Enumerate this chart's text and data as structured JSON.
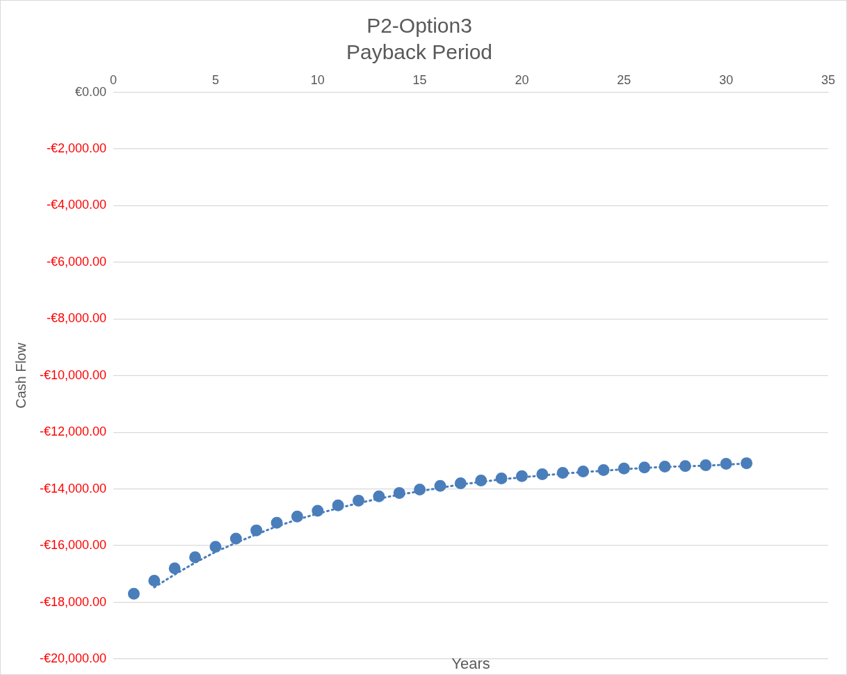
{
  "chart_data": {
    "type": "scatter",
    "title": "P2-Option3",
    "subtitle": "Payback Period",
    "xlabel": "Years",
    "ylabel": "Cash Flow",
    "xlim": [
      0,
      35
    ],
    "xticks": [
      0,
      5,
      10,
      15,
      20,
      25,
      30,
      35
    ],
    "ylim": [
      -20000,
      0
    ],
    "yticks": [
      {
        "value": 0,
        "label": "€0.00"
      },
      {
        "value": -2000,
        "label": "-€2,000.00"
      },
      {
        "value": -4000,
        "label": "-€4,000.00"
      },
      {
        "value": -6000,
        "label": "-€6,000.00"
      },
      {
        "value": -8000,
        "label": "-€8,000.00"
      },
      {
        "value": -10000,
        "label": "-€10,000.00"
      },
      {
        "value": -12000,
        "label": "-€12,000.00"
      },
      {
        "value": -14000,
        "label": "-€14,000.00"
      },
      {
        "value": -16000,
        "label": "-€16,000.00"
      },
      {
        "value": -18000,
        "label": "-€18,000.00"
      },
      {
        "value": -20000,
        "label": "-€20,000.00"
      }
    ],
    "grid": "y",
    "legend": false,
    "marker": "circle",
    "series": [
      {
        "color": "#4a7ebb",
        "x": [
          1,
          2,
          3,
          4,
          5,
          6,
          7,
          8,
          9,
          10,
          11,
          12,
          13,
          14,
          15,
          16,
          17,
          18,
          19,
          20,
          21,
          22,
          23,
          24,
          25,
          26,
          27,
          28,
          29,
          30,
          31
        ],
        "values": [
          -17700,
          -17240,
          -16800,
          -16410,
          -16040,
          -15750,
          -15460,
          -15190,
          -14970,
          -14770,
          -14580,
          -14410,
          -14260,
          -14140,
          -14020,
          -13890,
          -13800,
          -13700,
          -13630,
          -13550,
          -13480,
          -13430,
          -13380,
          -13330,
          -13280,
          -13240,
          -13210,
          -13190,
          -13160,
          -13110,
          -13090
        ]
      },
      {
        "type": "line",
        "color": "#4a7ebb",
        "marker": "none",
        "line_style": "dotted",
        "x": [
          2,
          3,
          4,
          5,
          6,
          7,
          8,
          9,
          10,
          11,
          12,
          13,
          14,
          15,
          16,
          17,
          18,
          19,
          20,
          21,
          22,
          23,
          24,
          25,
          26,
          27,
          28,
          29,
          30,
          31
        ],
        "values": [
          -17470,
          -17020,
          -16600,
          -16220,
          -15900,
          -15600,
          -15320,
          -15080,
          -14870,
          -14680,
          -14500,
          -14340,
          -14200,
          -14080,
          -13960,
          -13840,
          -13750,
          -13660,
          -13590,
          -13520,
          -13460,
          -13400,
          -13360,
          -13300,
          -13260,
          -13220,
          -13200,
          -13180,
          -13140,
          -13100
        ]
      }
    ]
  }
}
